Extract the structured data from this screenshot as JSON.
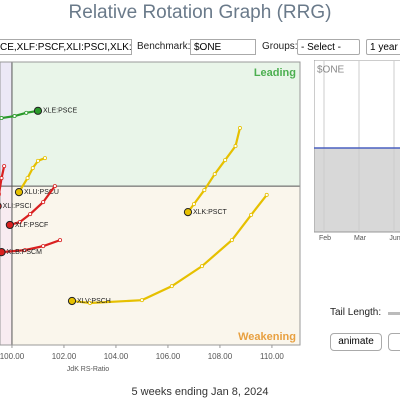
{
  "header": {
    "title": "Relative Rotation Graph (RRG)"
  },
  "controls": {
    "symbols": "CE,XLF:PSCF,XLI:PSCI,XLK:P",
    "benchmark_label": "Benchmark:",
    "benchmark": "$ONE",
    "groups_label": "Groups:",
    "groups": "- Select -",
    "period": "1 year"
  },
  "chart_data": {
    "type": "rrg",
    "x_label": "JdK RS-Ratio",
    "quadrants": [
      "Leading",
      "Weakening"
    ],
    "xlim": [
      99.54,
      111.08
    ],
    "ylim": [
      96.03,
      103.1
    ],
    "center": [
      100,
      100
    ],
    "xticks": [
      {
        "value": 100,
        "label": "100.00"
      },
      {
        "value": 102,
        "label": "102.00"
      },
      {
        "value": 104,
        "label": "104.00"
      },
      {
        "value": 106,
        "label": "106.00"
      },
      {
        "value": 108,
        "label": "108.00"
      },
      {
        "value": 110,
        "label": "110.00"
      }
    ],
    "series": [
      {
        "name": "XLE:PSCE",
        "color": "#2a9a2a",
        "x": [
          99.6,
          100.1,
          100.55,
          101.0
        ],
        "y": [
          101.7,
          101.75,
          101.83,
          101.88
        ]
      },
      {
        "name": "XLU:PSCU",
        "color": "#e6c000",
        "x": [
          101.27,
          101.0,
          100.8,
          100.6,
          100.27
        ],
        "y": [
          100.7,
          100.63,
          100.45,
          100.2,
          99.85
        ]
      },
      {
        "name": "XLK:PSCT",
        "color": "#e6c000",
        "x": [
          108.77,
          108.6,
          108.2,
          107.8,
          107.4,
          107.0,
          106.77
        ],
        "y": [
          101.45,
          101.0,
          100.65,
          100.3,
          99.9,
          99.55,
          99.35
        ]
      },
      {
        "name": "XLV:PSCH",
        "color": "#e6c000",
        "x": [
          109.8,
          109.2,
          108.46,
          107.31,
          106.15,
          105.0,
          103.0,
          102.31
        ],
        "y": [
          99.78,
          99.28,
          98.65,
          98.0,
          97.5,
          97.15,
          97.08,
          97.13
        ]
      },
      {
        "name": "XLF:PSCF",
        "color": "#d92020",
        "x": [
          101.65,
          101.2,
          100.7,
          100.3,
          99.92
        ],
        "y": [
          100.0,
          99.6,
          99.3,
          99.1,
          99.03
        ]
      },
      {
        "name": "XLB:PSCM",
        "color": "#d92020",
        "x": [
          101.85,
          101.2,
          100.5,
          99.6
        ],
        "y": [
          98.65,
          98.5,
          98.4,
          98.35
        ]
      },
      {
        "name": "XLI:PSCI",
        "color": "#d92020",
        "x": [
          99.7,
          99.6,
          99.5,
          99.45
        ],
        "y": [
          100.5,
          100.2,
          99.8,
          99.5
        ]
      }
    ]
  },
  "side_chart": {
    "title": "$ONE",
    "months": [
      "Feb",
      "Mar",
      "Jun"
    ]
  },
  "tail_label": "Tail Length:",
  "animate": "animate",
  "footer": "5 weeks ending Jan 8, 2024"
}
